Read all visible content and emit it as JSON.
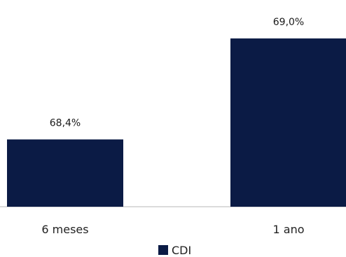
{
  "colors": {
    "bar": "#0b1b45",
    "axis": "#cfcfcf"
  },
  "chart_data": {
    "type": "bar",
    "categories": [
      "6 meses",
      "1 ano"
    ],
    "series": [
      {
        "name": "CDI",
        "values": [
          68.4,
          69.0
        ],
        "labels": [
          "68,4%",
          "69,0%"
        ]
      }
    ],
    "legend": "bottom",
    "grid": false
  }
}
